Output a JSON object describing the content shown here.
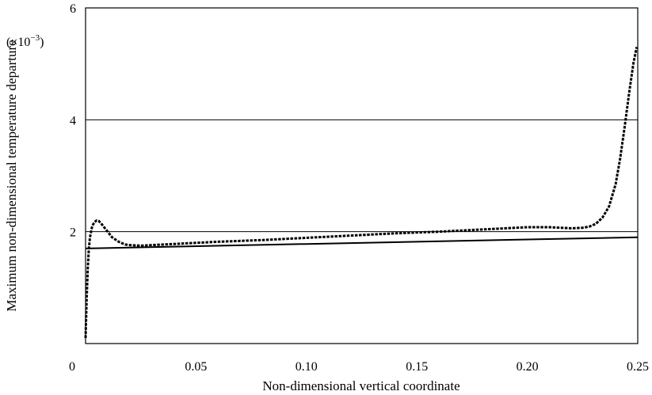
{
  "chart_data": {
    "type": "line",
    "xlabel": "Non-dimensional vertical coordinate",
    "ylabel": "Maximum non-dimensional temperature departure",
    "y_unit_prefix": "(×10",
    "y_unit_exp": "−3",
    "y_unit_suffix": ")",
    "xlim": [
      0,
      0.25
    ],
    "ylim": [
      0,
      6
    ],
    "x_ticks": [
      {
        "value": 0,
        "label": "0"
      },
      {
        "value": 0.05,
        "label": "0.05"
      },
      {
        "value": 0.1,
        "label": "0.10"
      },
      {
        "value": 0.15,
        "label": "0.15"
      },
      {
        "value": 0.2,
        "label": "0.20"
      },
      {
        "value": 0.25,
        "label": "0.25"
      }
    ],
    "y_ticks": [
      {
        "value": 2,
        "label": "2"
      },
      {
        "value": 4,
        "label": "4"
      },
      {
        "value": 6,
        "label": "6"
      }
    ],
    "gridlines_y": [
      2,
      4
    ],
    "series": [
      {
        "style": "solid",
        "x": [
          0.0,
          0.25
        ],
        "y": [
          1.7,
          1.9
        ]
      },
      {
        "style": "dashed",
        "x": [
          0.0,
          0.0005,
          0.001,
          0.0015,
          0.002,
          0.003,
          0.004,
          0.005,
          0.006,
          0.007,
          0.008,
          0.01,
          0.012,
          0.015,
          0.018,
          0.02,
          0.025,
          0.03,
          0.04,
          0.05,
          0.06,
          0.08,
          0.1,
          0.12,
          0.14,
          0.16,
          0.18,
          0.19,
          0.2,
          0.21,
          0.215,
          0.22,
          0.225,
          0.228,
          0.231,
          0.234,
          0.237,
          0.24,
          0.242,
          0.244,
          0.246,
          0.248,
          0.2495
        ],
        "y": [
          0.1,
          0.8,
          1.35,
          1.7,
          1.9,
          2.1,
          2.17,
          2.2,
          2.19,
          2.15,
          2.1,
          2.0,
          1.9,
          1.82,
          1.77,
          1.76,
          1.75,
          1.76,
          1.78,
          1.8,
          1.82,
          1.85,
          1.89,
          1.93,
          1.97,
          2.0,
          2.04,
          2.06,
          2.08,
          2.08,
          2.07,
          2.06,
          2.07,
          2.09,
          2.14,
          2.25,
          2.45,
          2.85,
          3.3,
          3.85,
          4.45,
          5.0,
          5.3
        ]
      }
    ]
  }
}
